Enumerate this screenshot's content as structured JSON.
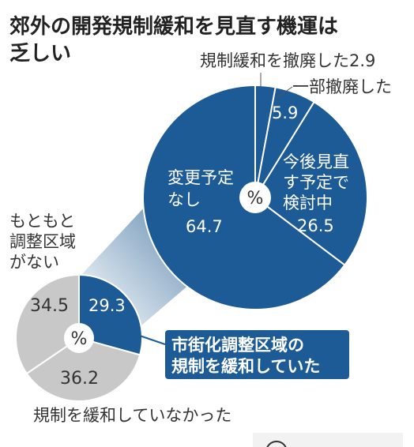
{
  "title_lines": [
    "郊外の開発規制緩和を見直す機運は",
    "乏しい"
  ],
  "chart_data": [
    {
      "type": "pie",
      "center_label": "%",
      "slices": [
        {
          "label": "市街化調整区域の規制を緩和していた",
          "value": 29.3,
          "value_label": "29.3",
          "color": "#1c5b96"
        },
        {
          "label": "規制を緩和していなかった",
          "value": 36.2,
          "value_label": "36.2",
          "color": "#c8c8c8"
        },
        {
          "label": "もともと調整区域がない",
          "value": 34.5,
          "value_label": "34.5",
          "color": "#c8c8c8"
        }
      ]
    },
    {
      "type": "pie",
      "center_label": "%",
      "slices": [
        {
          "label": "規制緩和を撤廃した",
          "value": 2.9,
          "value_label": "2.9",
          "color": "#1c5b96"
        },
        {
          "label": "一部撤廃した",
          "value": 5.9,
          "value_label": "5.9",
          "color": "#1c5b96"
        },
        {
          "label": "今後見直す予定で検討中",
          "value": 26.5,
          "value_label": "26.5",
          "color": "#1c5b96"
        },
        {
          "label": "変更予定なし",
          "value": 64.7,
          "value_label": "64.7",
          "color": "#1c5b96"
        }
      ]
    }
  ],
  "labels": {
    "big_abolished": "規制緩和を撤廃した2.9",
    "big_partial": "一部撤廃した",
    "big_partial_value": "5.9",
    "big_review_lines": [
      "今後見直",
      "す予定で",
      "検討中"
    ],
    "big_review_value": "26.5",
    "big_nochange_lines": [
      "変更予定",
      "なし"
    ],
    "big_nochange_value": "64.7",
    "small_none_lines": [
      "もともと",
      "調整区域",
      "がない"
    ],
    "small_none_value": "34.5",
    "small_eased_value": "29.3",
    "small_not_eased_value": "36.2",
    "small_not_eased": "規制を緩和していなかった",
    "callout_lines": [
      "市街化調整区域の",
      "規制を緩和していた"
    ]
  },
  "colors": {
    "blue": "#1c5b96",
    "gray": "#c8c8c8",
    "callout": "#1c5b96"
  }
}
